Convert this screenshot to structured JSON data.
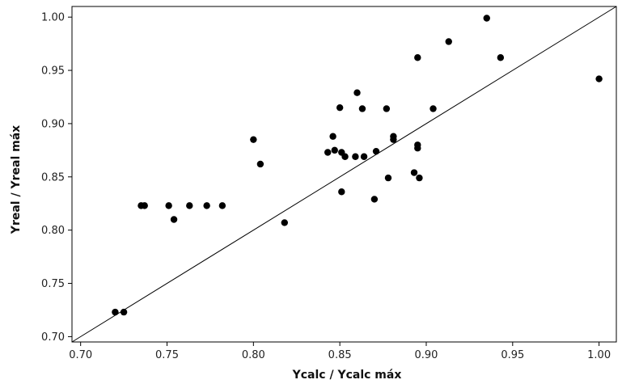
{
  "chart_data": {
    "type": "scatter",
    "title": "",
    "xlabel": "Ycalc / Ycalc máx",
    "ylabel": "Yreal / Yreal máx",
    "xlim": [
      0.695,
      1.01
    ],
    "ylim": [
      0.695,
      1.01
    ],
    "x_ticks": [
      "0.70",
      "0.75",
      "0.80",
      "0.85",
      "0.90",
      "0.95",
      "1.00"
    ],
    "y_ticks": [
      "0.70",
      "0.75",
      "0.80",
      "0.85",
      "0.90",
      "0.95",
      "1.00"
    ],
    "grid": false,
    "reference_line": {
      "type": "identity",
      "from": [
        0.695,
        0.695
      ],
      "to": [
        1.01,
        1.01
      ]
    },
    "colors": {
      "points": "#000000",
      "line": "#000000",
      "frame": "#000000"
    },
    "points": [
      {
        "x": 0.72,
        "y": 0.723
      },
      {
        "x": 0.725,
        "y": 0.723
      },
      {
        "x": 0.735,
        "y": 0.823
      },
      {
        "x": 0.737,
        "y": 0.823
      },
      {
        "x": 0.751,
        "y": 0.823
      },
      {
        "x": 0.754,
        "y": 0.81
      },
      {
        "x": 0.763,
        "y": 0.823
      },
      {
        "x": 0.773,
        "y": 0.823
      },
      {
        "x": 0.782,
        "y": 0.823
      },
      {
        "x": 0.8,
        "y": 0.885
      },
      {
        "x": 0.804,
        "y": 0.862
      },
      {
        "x": 0.818,
        "y": 0.807
      },
      {
        "x": 0.843,
        "y": 0.873
      },
      {
        "x": 0.846,
        "y": 0.888
      },
      {
        "x": 0.847,
        "y": 0.875
      },
      {
        "x": 0.85,
        "y": 0.915
      },
      {
        "x": 0.851,
        "y": 0.873
      },
      {
        "x": 0.853,
        "y": 0.869
      },
      {
        "x": 0.851,
        "y": 0.836
      },
      {
        "x": 0.859,
        "y": 0.869
      },
      {
        "x": 0.86,
        "y": 0.929
      },
      {
        "x": 0.863,
        "y": 0.914
      },
      {
        "x": 0.864,
        "y": 0.869
      },
      {
        "x": 0.87,
        "y": 0.829
      },
      {
        "x": 0.871,
        "y": 0.874
      },
      {
        "x": 0.877,
        "y": 0.914
      },
      {
        "x": 0.878,
        "y": 0.849
      },
      {
        "x": 0.881,
        "y": 0.885
      },
      {
        "x": 0.881,
        "y": 0.888
      },
      {
        "x": 0.893,
        "y": 0.854
      },
      {
        "x": 0.895,
        "y": 0.877
      },
      {
        "x": 0.895,
        "y": 0.88
      },
      {
        "x": 0.895,
        "y": 0.962
      },
      {
        "x": 0.896,
        "y": 0.849
      },
      {
        "x": 0.904,
        "y": 0.914
      },
      {
        "x": 0.913,
        "y": 0.977
      },
      {
        "x": 0.935,
        "y": 0.999
      },
      {
        "x": 0.943,
        "y": 0.962
      },
      {
        "x": 1.0,
        "y": 0.942
      }
    ]
  }
}
